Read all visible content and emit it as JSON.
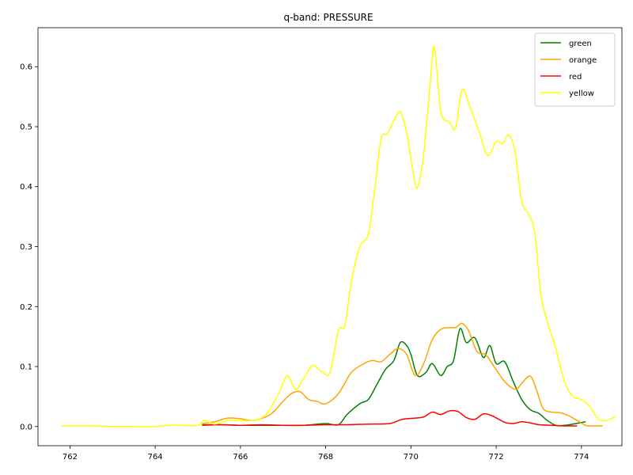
{
  "chart_data": {
    "type": "line",
    "title": "q-band: PRESSURE",
    "xlabel": "",
    "ylabel": "",
    "xlim": [
      761.25,
      774.95
    ],
    "ylim": [
      -0.032,
      0.665
    ],
    "xticks": [
      762,
      764,
      766,
      768,
      770,
      772,
      774
    ],
    "yticks": [
      0.0,
      0.1,
      0.2,
      0.3,
      0.4,
      0.5,
      0.6
    ],
    "grid": false,
    "legend": "top-right",
    "series": [
      {
        "name": "green",
        "color": "#008000",
        "x": [
          765.1,
          765.6,
          766.0,
          766.5,
          767.0,
          767.5,
          768.0,
          768.3,
          768.5,
          768.8,
          769.0,
          769.2,
          769.4,
          769.6,
          769.75,
          769.9,
          770.0,
          770.15,
          770.35,
          770.5,
          770.7,
          770.85,
          771.0,
          771.15,
          771.3,
          771.5,
          771.7,
          771.85,
          772.0,
          772.2,
          772.4,
          772.6,
          772.8,
          773.0,
          773.2,
          773.4,
          773.6,
          773.8,
          774.1
        ],
        "y": [
          0.003,
          0.003,
          0.002,
          0.002,
          0.002,
          0.002,
          0.005,
          0.003,
          0.02,
          0.038,
          0.045,
          0.07,
          0.095,
          0.11,
          0.14,
          0.135,
          0.12,
          0.085,
          0.09,
          0.105,
          0.085,
          0.1,
          0.11,
          0.163,
          0.14,
          0.148,
          0.115,
          0.135,
          0.105,
          0.108,
          0.075,
          0.045,
          0.028,
          0.022,
          0.01,
          0.002,
          0.002,
          0.004,
          0.008
        ]
      },
      {
        "name": "orange",
        "color": "#ffa500",
        "x": [
          765.1,
          765.4,
          765.7,
          766.0,
          766.3,
          766.7,
          767.0,
          767.2,
          767.4,
          767.6,
          767.8,
          768.0,
          768.3,
          768.6,
          768.9,
          769.1,
          769.3,
          769.5,
          769.7,
          769.9,
          770.1,
          770.3,
          770.5,
          770.7,
          770.9,
          771.05,
          771.2,
          771.35,
          771.55,
          771.75,
          771.95,
          772.2,
          772.45,
          772.6,
          772.8,
          772.95,
          773.1,
          773.3,
          773.5,
          773.7,
          773.9,
          774.1,
          774.3,
          774.5
        ],
        "y": [
          0.005,
          0.008,
          0.014,
          0.013,
          0.01,
          0.02,
          0.042,
          0.055,
          0.058,
          0.045,
          0.042,
          0.038,
          0.055,
          0.09,
          0.105,
          0.11,
          0.108,
          0.12,
          0.13,
          0.12,
          0.085,
          0.105,
          0.145,
          0.162,
          0.165,
          0.165,
          0.172,
          0.16,
          0.125,
          0.12,
          0.1,
          0.075,
          0.062,
          0.072,
          0.084,
          0.06,
          0.03,
          0.024,
          0.023,
          0.018,
          0.01,
          0.002,
          0.001,
          0.001
        ]
      },
      {
        "name": "red",
        "color": "#ff0000",
        "x": [
          765.1,
          765.5,
          766.0,
          766.5,
          767.0,
          767.5,
          768.0,
          768.5,
          769.0,
          769.5,
          769.8,
          770.1,
          770.3,
          770.5,
          770.7,
          770.9,
          771.1,
          771.3,
          771.5,
          771.7,
          771.9,
          772.2,
          772.4,
          772.6,
          772.8,
          773.0,
          773.3,
          773.6,
          773.9
        ],
        "y": [
          0.002,
          0.003,
          0.002,
          0.003,
          0.002,
          0.002,
          0.003,
          0.003,
          0.004,
          0.005,
          0.012,
          0.014,
          0.016,
          0.024,
          0.02,
          0.026,
          0.025,
          0.015,
          0.012,
          0.021,
          0.018,
          0.007,
          0.005,
          0.008,
          0.006,
          0.003,
          0.002,
          0.001,
          0.001
        ]
      },
      {
        "name": "yellow",
        "color": "#ffff00",
        "x": [
          761.8,
          762.5,
          763.0,
          763.5,
          764.0,
          764.3,
          764.6,
          765.0,
          765.15,
          765.4,
          765.7,
          766.0,
          766.3,
          766.6,
          766.9,
          767.1,
          767.3,
          767.5,
          767.7,
          767.9,
          768.1,
          768.3,
          768.45,
          768.6,
          768.8,
          769.0,
          769.15,
          769.3,
          769.45,
          769.6,
          769.75,
          769.9,
          770.05,
          770.15,
          770.3,
          770.45,
          770.55,
          770.7,
          770.9,
          771.05,
          771.2,
          771.4,
          771.6,
          771.8,
          772.0,
          772.15,
          772.3,
          772.45,
          772.6,
          772.75,
          772.9,
          773.05,
          773.2,
          773.4,
          773.6,
          773.8,
          774.0,
          774.2,
          774.4,
          774.6,
          774.8
        ],
        "y": [
          0.001,
          0.001,
          0.0,
          0.0,
          0.0,
          0.002,
          0.002,
          0.002,
          0.01,
          0.004,
          0.01,
          0.01,
          0.01,
          0.02,
          0.055,
          0.085,
          0.062,
          0.082,
          0.102,
          0.092,
          0.09,
          0.16,
          0.168,
          0.24,
          0.3,
          0.32,
          0.395,
          0.48,
          0.488,
          0.51,
          0.525,
          0.49,
          0.425,
          0.398,
          0.455,
          0.57,
          0.633,
          0.525,
          0.508,
          0.498,
          0.562,
          0.53,
          0.492,
          0.452,
          0.475,
          0.472,
          0.486,
          0.455,
          0.375,
          0.355,
          0.325,
          0.22,
          0.175,
          0.13,
          0.075,
          0.05,
          0.045,
          0.033,
          0.012,
          0.01,
          0.017
        ]
      }
    ]
  }
}
